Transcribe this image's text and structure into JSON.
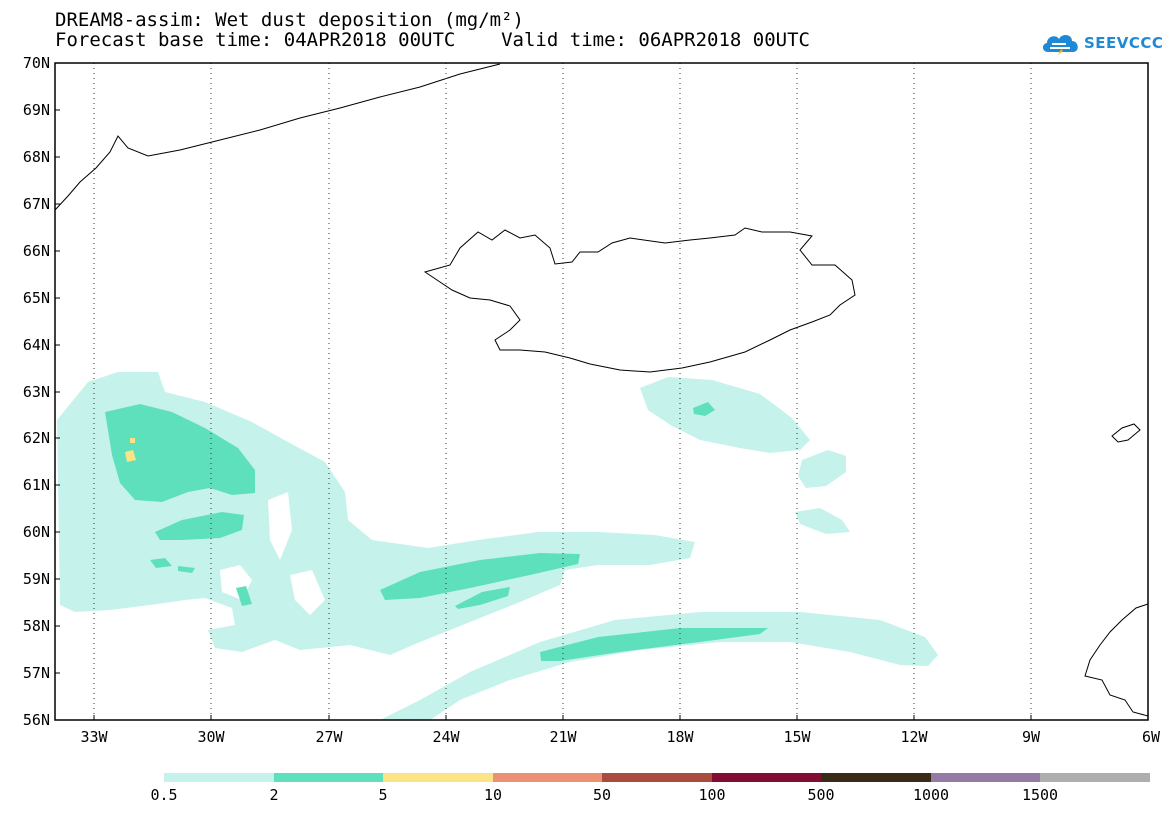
{
  "title": {
    "line1": "DREAM8-assim: Wet dust deposition (mg/m²)",
    "line2": "Forecast base time: 04APR2018 00UTC    Valid time: 06APR2018 00UTC"
  },
  "logo": {
    "text": "SEEVCCC",
    "icon": "cloud-icon",
    "color": "#1e8ad6"
  },
  "map": {
    "lat_range": [
      56,
      70
    ],
    "lon_range": [
      -34.5,
      -6
    ],
    "lat_labels": [
      "70N",
      "69N",
      "68N",
      "67N",
      "66N",
      "65N",
      "64N",
      "63N",
      "62N",
      "61N",
      "60N",
      "59N",
      "58N",
      "57N",
      "56N"
    ],
    "lon_labels": [
      "33W",
      "30W",
      "27W",
      "24W",
      "21W",
      "18W",
      "15W",
      "12W",
      "9W",
      "6W"
    ],
    "gridlines": "dotted"
  },
  "colorbar": {
    "colors": [
      "#c6f2ec",
      "#5fe0bd",
      "#fae486",
      "#ea9273",
      "#aa4b3f",
      "#820d33",
      "#3a2a18",
      "#957aa6",
      "#aeaeae"
    ],
    "labels": [
      "0.5",
      "2",
      "5",
      "10",
      "50",
      "100",
      "500",
      "1000",
      "1500"
    ]
  }
}
